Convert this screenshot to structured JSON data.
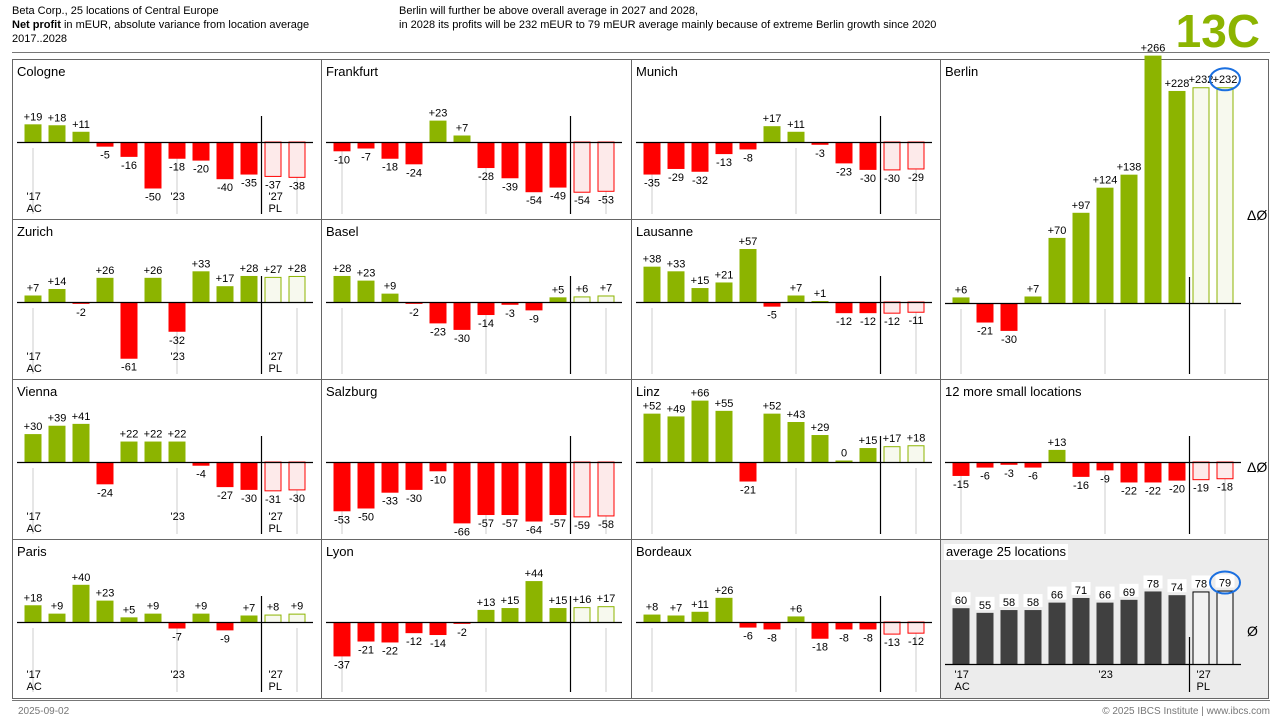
{
  "header": {
    "line1": "Beta Corp., 25 locations of Central Europe",
    "line2_bold": "Net profit",
    "line2_rest": " in mEUR, absolute variance from location average",
    "line3": "2017..2028",
    "message_line1": "Berlin will further be above overall average in 2027 and 2028,",
    "message_line2": "in 2028 its profits will be 232 mEUR to 79 mEUR average mainly because of extreme Berlin growth since 2020",
    "chart_id": "13C"
  },
  "footer": {
    "date": "2025-09-02",
    "copyright": "© 2025 IBCS Institute | www.ibcs.com"
  },
  "colors": {
    "positive": "#8cb400",
    "negative": "#ff0000",
    "pl_positive_fill": "#f7f9ee",
    "pl_negative_fill": "#fdeaea",
    "average": "#404040",
    "highlight": "#1a6fe0",
    "accent": "#8cb400"
  },
  "chart_data": [
    {
      "type": "bar",
      "title": "Cologne",
      "categories": [
        "2017",
        "2018",
        "2019",
        "2020",
        "2021",
        "2022",
        "2023",
        "2024",
        "2025",
        "2026",
        "2027",
        "2028"
      ],
      "scenario": [
        "AC",
        "AC",
        "AC",
        "AC",
        "AC",
        "AC",
        "AC",
        "AC",
        "AC",
        "AC",
        "PL",
        "PL"
      ],
      "values": [
        19,
        18,
        11,
        -5,
        -16,
        -50,
        -18,
        -20,
        -40,
        -35,
        -37,
        -38
      ],
      "tick_labels": [
        "'17",
        "'23",
        "'27"
      ],
      "scenario_labels": [
        "AC",
        "PL"
      ],
      "show_tick_labels": true
    },
    {
      "type": "bar",
      "title": "Frankfurt",
      "categories": [
        "2017",
        "2018",
        "2019",
        "2020",
        "2021",
        "2022",
        "2023",
        "2024",
        "2025",
        "2026",
        "2027",
        "2028"
      ],
      "values": [
        -10,
        -7,
        -18,
        -24,
        23,
        7,
        -28,
        -39,
        -54,
        -49,
        -54,
        -53
      ],
      "show_tick_labels": false
    },
    {
      "type": "bar",
      "title": "Munich",
      "categories": [
        "2017",
        "2018",
        "2019",
        "2020",
        "2021",
        "2022",
        "2023",
        "2024",
        "2025",
        "2026",
        "2027",
        "2028"
      ],
      "values": [
        -35,
        -29,
        -32,
        -13,
        -8,
        17,
        11,
        -3,
        -23,
        -30,
        -30,
        -29
      ],
      "show_tick_labels": false
    },
    {
      "type": "bar",
      "title": "Berlin",
      "categories": [
        "2017",
        "2018",
        "2019",
        "2020",
        "2021",
        "2022",
        "2023",
        "2024",
        "2025",
        "2026",
        "2027",
        "2028"
      ],
      "values": [
        6,
        -21,
        -30,
        7,
        70,
        97,
        124,
        138,
        266,
        228,
        232,
        232
      ],
      "highlight_index": 11,
      "axis_label": "ΔØ",
      "show_tick_labels": false
    },
    {
      "type": "bar",
      "title": "Zurich",
      "categories": [
        "2017",
        "2018",
        "2019",
        "2020",
        "2021",
        "2022",
        "2023",
        "2024",
        "2025",
        "2026",
        "2027",
        "2028"
      ],
      "values": [
        7,
        14,
        -2,
        26,
        -61,
        26,
        -32,
        33,
        17,
        28,
        27,
        28
      ],
      "show_tick_labels": true
    },
    {
      "type": "bar",
      "title": "Basel",
      "categories": [
        "2017",
        "2018",
        "2019",
        "2020",
        "2021",
        "2022",
        "2023",
        "2024",
        "2025",
        "2026",
        "2027",
        "2028"
      ],
      "values": [
        28,
        23,
        9,
        -2,
        -23,
        -30,
        -14,
        -3,
        -9,
        5,
        6,
        7
      ],
      "show_tick_labels": false
    },
    {
      "type": "bar",
      "title": "Lausanne",
      "categories": [
        "2017",
        "2018",
        "2019",
        "2020",
        "2021",
        "2022",
        "2023",
        "2024",
        "2025",
        "2026",
        "2027",
        "2028"
      ],
      "values": [
        38,
        33,
        15,
        21,
        57,
        -5,
        7,
        1,
        -12,
        -12,
        -12,
        -11
      ],
      "show_tick_labels": false
    },
    {
      "type": "bar",
      "title": "Vienna",
      "categories": [
        "2017",
        "2018",
        "2019",
        "2020",
        "2021",
        "2022",
        "2023",
        "2024",
        "2025",
        "2026",
        "2027",
        "2028"
      ],
      "values": [
        30,
        39,
        41,
        -24,
        22,
        22,
        22,
        -4,
        -27,
        -30,
        -31,
        -30
      ],
      "show_tick_labels": true
    },
    {
      "type": "bar",
      "title": "Salzburg",
      "categories": [
        "2017",
        "2018",
        "2019",
        "2020",
        "2021",
        "2022",
        "2023",
        "2024",
        "2025",
        "2026",
        "2027",
        "2028"
      ],
      "values": [
        -53,
        -50,
        -33,
        -30,
        -10,
        -66,
        -57,
        -57,
        -64,
        -57,
        -59,
        -58
      ],
      "show_tick_labels": false
    },
    {
      "type": "bar",
      "title": "Linz",
      "categories": [
        "2017",
        "2018",
        "2019",
        "2020",
        "2021",
        "2022",
        "2023",
        "2024",
        "2025",
        "2026",
        "2027",
        "2028"
      ],
      "values": [
        52,
        49,
        66,
        55,
        -21,
        52,
        43,
        29,
        0,
        15,
        17,
        18
      ],
      "show_tick_labels": false
    },
    {
      "type": "bar",
      "title": "12 more small locations",
      "categories": [
        "2017",
        "2018",
        "2019",
        "2020",
        "2021",
        "2022",
        "2023",
        "2024",
        "2025",
        "2026",
        "2027",
        "2028"
      ],
      "values": [
        -15,
        -6,
        -3,
        -6,
        13,
        -16,
        -9,
        -22,
        -22,
        -20,
        -19,
        -18
      ],
      "axis_label": "ΔØ",
      "show_tick_labels": false
    },
    {
      "type": "bar",
      "title": "Paris",
      "categories": [
        "2017",
        "2018",
        "2019",
        "2020",
        "2021",
        "2022",
        "2023",
        "2024",
        "2025",
        "2026",
        "2027",
        "2028"
      ],
      "values": [
        18,
        9,
        40,
        23,
        5,
        9,
        -7,
        9,
        -9,
        7,
        8,
        9
      ],
      "show_tick_labels": true
    },
    {
      "type": "bar",
      "title": "Lyon",
      "categories": [
        "2017",
        "2018",
        "2019",
        "2020",
        "2021",
        "2022",
        "2023",
        "2024",
        "2025",
        "2026",
        "2027",
        "2028"
      ],
      "values": [
        -37,
        -21,
        -22,
        -12,
        -14,
        -2,
        13,
        15,
        44,
        15,
        16,
        17
      ],
      "show_tick_labels": false
    },
    {
      "type": "bar",
      "title": "Bordeaux",
      "categories": [
        "2017",
        "2018",
        "2019",
        "2020",
        "2021",
        "2022",
        "2023",
        "2024",
        "2025",
        "2026",
        "2027",
        "2028"
      ],
      "values": [
        8,
        7,
        11,
        26,
        -6,
        -8,
        6,
        -18,
        -8,
        -8,
        -13,
        -12
      ],
      "show_tick_labels": false
    },
    {
      "type": "bar",
      "title": "average 25 locations",
      "categories": [
        "2017",
        "2018",
        "2019",
        "2020",
        "2021",
        "2022",
        "2023",
        "2024",
        "2025",
        "2026",
        "2027",
        "2028"
      ],
      "values": [
        60,
        55,
        58,
        58,
        66,
        71,
        66,
        69,
        78,
        74,
        78,
        79
      ],
      "highlight_index": 11,
      "axis_label": "Ø",
      "absolute": true,
      "show_tick_labels": true
    }
  ],
  "ticks": {
    "first": "'17",
    "mid": "'23",
    "pl": "'27",
    "ac_label": "AC",
    "pl_label": "PL"
  }
}
